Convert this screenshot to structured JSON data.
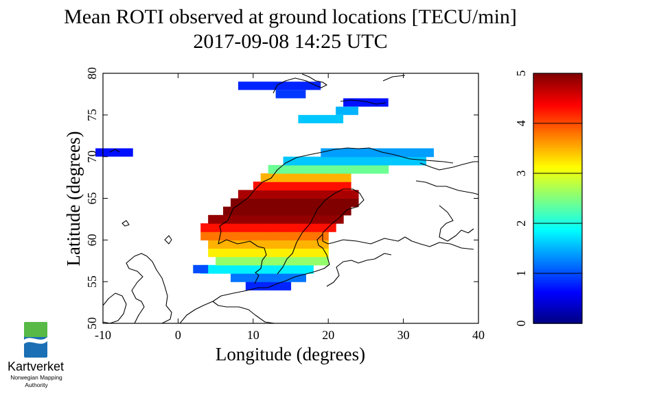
{
  "chart_data": {
    "type": "heatmap",
    "title": "Mean ROTI observed at ground locations [TECU/min]",
    "subtitle": "2017-09-08 14:25 UTC",
    "xlabel": "Longitude (degrees)",
    "ylabel": "Latitude (degrees)",
    "xlim": [
      -10,
      40
    ],
    "ylim": [
      50,
      80
    ],
    "x_ticks": [
      "-10",
      "0",
      "10",
      "20",
      "30",
      "40"
    ],
    "y_ticks": [
      "50",
      "55",
      "60",
      "65",
      "70",
      "75",
      "80"
    ],
    "colorbar": {
      "min": 0,
      "max": 5,
      "ticks": [
        "0",
        "1",
        "2",
        "3",
        "4",
        "5"
      ],
      "colormap": "jet"
    },
    "grid": false,
    "cell_size_deg": 1,
    "lat_profile": [
      {
        "lat": 54,
        "value": 0.8
      },
      {
        "lat": 55,
        "value": 1.2
      },
      {
        "lat": 56,
        "value": 1.8
      },
      {
        "lat": 57,
        "value": 2.6
      },
      {
        "lat": 58,
        "value": 3.2
      },
      {
        "lat": 59,
        "value": 3.5
      },
      {
        "lat": 60,
        "value": 3.8
      },
      {
        "lat": 61,
        "value": 4.3
      },
      {
        "lat": 62,
        "value": 4.9
      },
      {
        "lat": 63,
        "value": 5.0
      },
      {
        "lat": 64,
        "value": 5.0
      },
      {
        "lat": 65,
        "value": 4.8
      },
      {
        "lat": 66,
        "value": 4.3
      },
      {
        "lat": 67,
        "value": 3.5
      },
      {
        "lat": 68,
        "value": 2.4
      },
      {
        "lat": 69,
        "value": 1.6
      },
      {
        "lat": 70,
        "value": 1.4
      },
      {
        "lat": 71,
        "value": 1.3
      }
    ],
    "coverage_rows": [
      {
        "lat": 54,
        "lon_min": 9,
        "lon_max": 15
      },
      {
        "lat": 55,
        "lon_min": 7,
        "lon_max": 17
      },
      {
        "lat": 56,
        "lon_min": 3,
        "lon_max": 18
      },
      {
        "lat": 57,
        "lon_min": 5,
        "lon_max": 20
      },
      {
        "lat": 58,
        "lon_min": 4,
        "lon_max": 20
      },
      {
        "lat": 59,
        "lon_min": 4,
        "lon_max": 20
      },
      {
        "lat": 60,
        "lon_min": 3,
        "lon_max": 20
      },
      {
        "lat": 61,
        "lon_min": 3,
        "lon_max": 21
      },
      {
        "lat": 62,
        "lon_min": 4,
        "lon_max": 22
      },
      {
        "lat": 63,
        "lon_min": 6,
        "lon_max": 23
      },
      {
        "lat": 64,
        "lon_min": 7,
        "lon_max": 24
      },
      {
        "lat": 65,
        "lon_min": 8,
        "lon_max": 24
      },
      {
        "lat": 66,
        "lon_min": 10,
        "lon_max": 23
      },
      {
        "lat": 67,
        "lon_min": 11,
        "lon_max": 23
      },
      {
        "lat": 68,
        "lon_min": 12,
        "lon_max": 28
      },
      {
        "lat": 69,
        "lon_min": 14,
        "lon_max": 33
      },
      {
        "lat": 70,
        "lon_min": 19,
        "lon_max": 34
      }
    ],
    "isolated_cells": [
      {
        "lon": -11,
        "lat": 70,
        "w": 5,
        "value": 0.7
      },
      {
        "lon": 8,
        "lat": 78,
        "w": 11,
        "value": 0.8
      },
      {
        "lon": 13,
        "lat": 77,
        "w": 4,
        "value": 0.9
      },
      {
        "lon": 22,
        "lat": 76,
        "w": 6,
        "value": 0.7
      },
      {
        "lon": 21,
        "lat": 75,
        "w": 3,
        "value": 1.5
      },
      {
        "lon": 16,
        "lat": 74,
        "w": 6,
        "value": 1.6
      },
      {
        "lon": 2,
        "lat": 56,
        "w": 2,
        "value": 1.0
      }
    ]
  },
  "logo": {
    "name": "Kartverket",
    "tagline_line1": "Norwegian Mapping",
    "tagline_line2": "Authority",
    "colors": {
      "green": "#58b947",
      "blue": "#1b6fb4"
    }
  }
}
